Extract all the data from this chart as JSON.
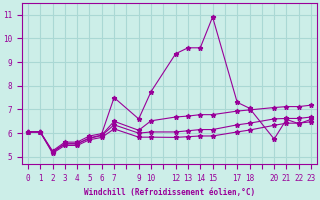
{
  "xlabel": "Windchill (Refroidissement éolien,°C)",
  "bg_color": "#cceee8",
  "line_color": "#990099",
  "grid_color": "#aad8d4",
  "xtick_labels": [
    "0",
    "1",
    "2",
    "3",
    "4",
    "5",
    "6",
    "7",
    "",
    "9",
    "10",
    "",
    "12",
    "13",
    "14",
    "15",
    "",
    "17",
    "18",
    "",
    "20",
    "21",
    "22",
    "23"
  ],
  "yticks": [
    5,
    6,
    7,
    8,
    9,
    10,
    11
  ],
  "ylim": [
    4.7,
    11.5
  ],
  "lines": [
    {
      "xi": [
        0,
        1,
        2,
        3,
        4,
        5,
        6,
        7,
        9,
        10,
        12,
        13,
        14,
        15,
        17,
        18,
        20,
        21,
        22,
        23
      ],
      "y": [
        6.05,
        6.05,
        5.2,
        5.55,
        5.55,
        5.78,
        5.9,
        6.35,
        6.0,
        6.05,
        6.05,
        6.1,
        6.15,
        6.15,
        6.35,
        6.42,
        6.6,
        6.62,
        6.62,
        6.68
      ]
    },
    {
      "xi": [
        0,
        1,
        2,
        3,
        4,
        5,
        6,
        7,
        9,
        10,
        12,
        13,
        14,
        15,
        17,
        18,
        20,
        21,
        22,
        23
      ],
      "y": [
        6.05,
        6.05,
        5.15,
        5.48,
        5.48,
        5.72,
        5.82,
        6.18,
        5.83,
        5.83,
        5.82,
        5.85,
        5.88,
        5.88,
        6.05,
        6.13,
        6.33,
        6.42,
        6.42,
        6.48
      ]
    },
    {
      "xi": [
        0,
        1,
        2,
        3,
        4,
        5,
        6,
        7,
        9,
        10,
        12,
        13,
        14,
        15,
        17,
        18,
        20,
        21,
        22,
        23
      ],
      "y": [
        6.05,
        6.05,
        5.25,
        5.62,
        5.62,
        5.88,
        5.98,
        7.5,
        6.6,
        7.75,
        9.35,
        9.6,
        9.6,
        10.9,
        7.3,
        7.05,
        5.75,
        6.58,
        6.4,
        6.58
      ]
    },
    {
      "xi": [
        0,
        1,
        2,
        3,
        4,
        5,
        6,
        7,
        9,
        10,
        12,
        13,
        14,
        15,
        17,
        18,
        20,
        21,
        22,
        23
      ],
      "y": [
        6.05,
        6.05,
        5.2,
        5.55,
        5.55,
        5.8,
        5.92,
        6.5,
        6.12,
        6.52,
        6.68,
        6.72,
        6.78,
        6.78,
        6.93,
        6.98,
        7.08,
        7.12,
        7.12,
        7.18
      ]
    }
  ]
}
